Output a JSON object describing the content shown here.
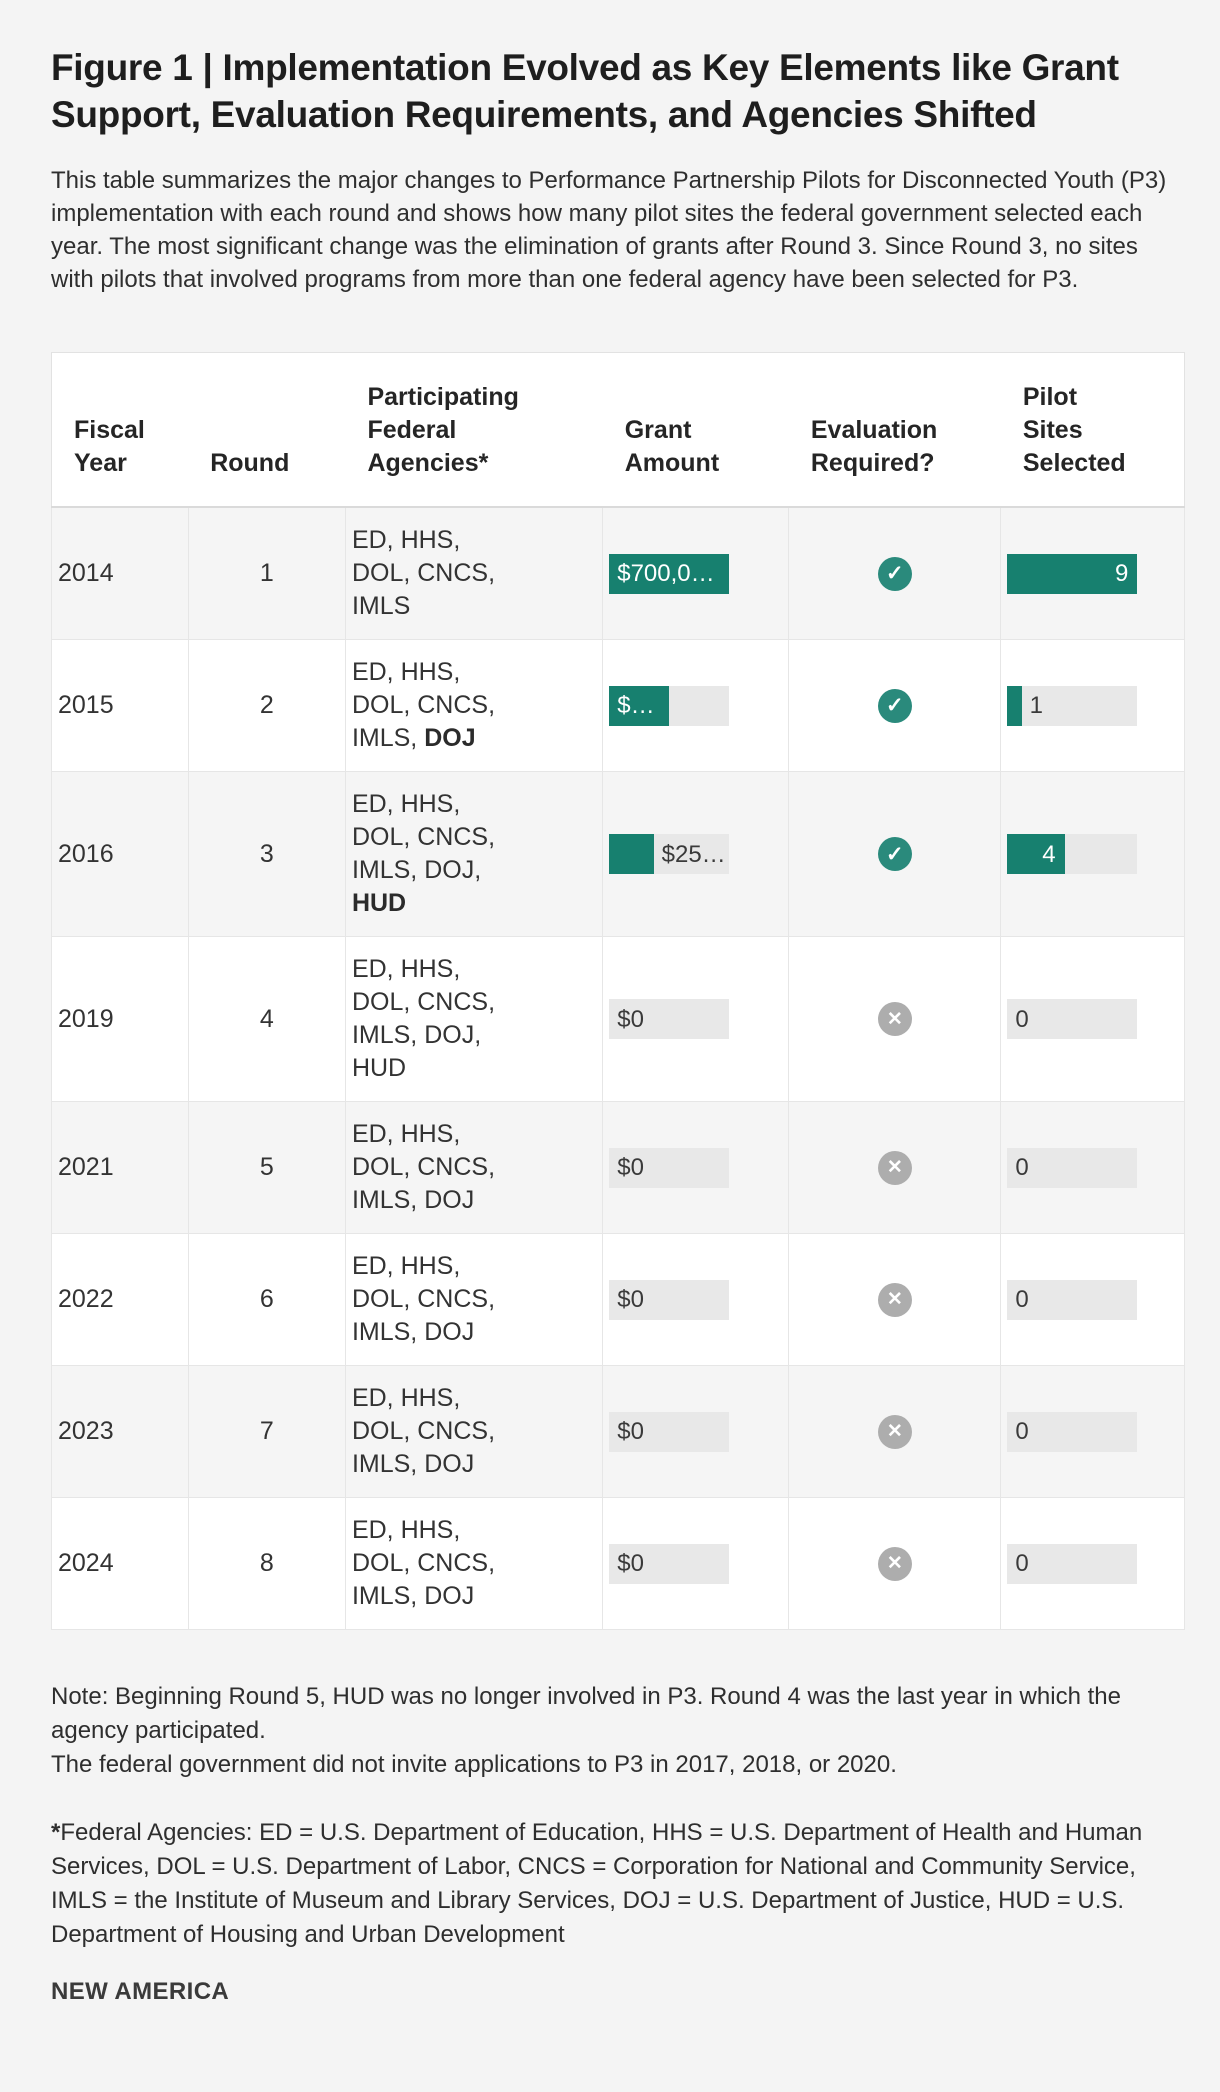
{
  "figure": {
    "title": "Figure 1 | Implementation Evolved as Key Elements like Grant Support, Evaluation Requirements, and Agencies Shifted",
    "description": "This table summarizes the major changes to Performance Partnership Pilots for Disconnected Youth (P3) implementation with each round and shows how many pilot sites the federal government selected each year. The most significant change was the elimination of grants after Round 3. Since Round 3, no sites with pilots that involved programs from more than one federal agency have been selected for P3.",
    "notes": [
      "Note: Beginning Round 5, HUD was no longer involved in P3. Round 4 was the last year in which the agency participated.",
      "The federal government did not invite applications to P3 in 2017, 2018, or 2020."
    ],
    "footnote_marker": "*",
    "footnote_text": "Federal Agencies: ED = U.S. Department of Education, HHS = U.S. Department of Health and Human Services, DOL = U.S. Department of Labor, CNCS = Corporation for National and Community Service, IMLS = the Institute of Museum and Library Services, DOJ = U.S. Department of Justice, HUD = U.S. Department of Housing and Urban Development",
    "brand": "NEW AMERICA"
  },
  "icons": {
    "check": "✓",
    "cross": "✕"
  },
  "colors": {
    "teal_bar": "#17806F",
    "check_circle": "#2A8A7C",
    "cross_circle": "#ADADAD",
    "bar_track": "#E8E8E8",
    "row_stripe": "#F5F5F5",
    "page_background": "#F4F4F4"
  },
  "table": {
    "columns": [
      "Fiscal Year",
      "Round",
      "Participating Federal Agencies*",
      "Grant Amount",
      "Evaluation Required?",
      "Pilot Sites Selected"
    ],
    "rows": [
      {
        "fiscal_year": "2014",
        "round": "1",
        "agencies": "ED, HHS, DOL, CNCS, IMLS",
        "agencies_bold": "",
        "grant_label": "$700,0…",
        "grant_fill_pct": 100,
        "evaluation": "yes",
        "sites_label": "9",
        "sites_fill_pct": 100
      },
      {
        "fiscal_year": "2015",
        "round": "2",
        "agencies": "ED, HHS, DOL, CNCS, IMLS, ",
        "agencies_bold": "DOJ",
        "grant_label": "$…",
        "grant_fill_pct": 50,
        "evaluation": "yes",
        "sites_label": "1",
        "sites_fill_pct": 11
      },
      {
        "fiscal_year": "2016",
        "round": "3",
        "agencies": "ED, HHS, DOL, CNCS, IMLS, DOJ, ",
        "agencies_bold": "HUD",
        "grant_label": "$25…",
        "grant_fill_pct": 37,
        "evaluation": "yes",
        "sites_label": "4",
        "sites_fill_pct": 44
      },
      {
        "fiscal_year": "2019",
        "round": "4",
        "agencies": "ED, HHS, DOL, CNCS, IMLS, DOJ, HUD",
        "agencies_bold": "",
        "grant_label": "$0",
        "grant_fill_pct": 0,
        "evaluation": "no",
        "sites_label": "0",
        "sites_fill_pct": 0
      },
      {
        "fiscal_year": "2021",
        "round": "5",
        "agencies": "ED, HHS, DOL, CNCS, IMLS, DOJ",
        "agencies_bold": "",
        "grant_label": "$0",
        "grant_fill_pct": 0,
        "evaluation": "no",
        "sites_label": "0",
        "sites_fill_pct": 0
      },
      {
        "fiscal_year": "2022",
        "round": "6",
        "agencies": "ED, HHS, DOL, CNCS, IMLS, DOJ",
        "agencies_bold": "",
        "grant_label": "$0",
        "grant_fill_pct": 0,
        "evaluation": "no",
        "sites_label": "0",
        "sites_fill_pct": 0
      },
      {
        "fiscal_year": "2023",
        "round": "7",
        "agencies": "ED, HHS, DOL, CNCS, IMLS, DOJ",
        "agencies_bold": "",
        "grant_label": "$0",
        "grant_fill_pct": 0,
        "evaluation": "no",
        "sites_label": "0",
        "sites_fill_pct": 0
      },
      {
        "fiscal_year": "2024",
        "round": "8",
        "agencies": "ED, HHS, DOL, CNCS, IMLS, DOJ",
        "agencies_bold": "",
        "grant_label": "$0",
        "grant_fill_pct": 0,
        "evaluation": "no",
        "sites_label": "0",
        "sites_fill_pct": 0
      }
    ]
  },
  "chart_data": {
    "type": "table",
    "title": "Figure 1 | Implementation Evolved as Key Elements like Grant Support, Evaluation Requirements, and Agencies Shifted",
    "columns": [
      "Fiscal Year",
      "Round",
      "Participating Federal Agencies*",
      "Grant Amount",
      "Evaluation Required?",
      "Pilot Sites Selected"
    ],
    "rows": [
      {
        "fiscal_year": 2014,
        "round": 1,
        "agencies": "ED, HHS, DOL, CNCS, IMLS",
        "grant_label_shown": "$700,0…",
        "grant_bar_fraction": 1.0,
        "evaluation_required": true,
        "pilot_sites_selected": 9,
        "pilot_bar_fraction": 1.0
      },
      {
        "fiscal_year": 2015,
        "round": 2,
        "agencies": "ED, HHS, DOL, CNCS, IMLS, DOJ",
        "grant_label_shown": "$…",
        "grant_bar_fraction": 0.5,
        "evaluation_required": true,
        "pilot_sites_selected": 1,
        "pilot_bar_fraction": 0.11
      },
      {
        "fiscal_year": 2016,
        "round": 3,
        "agencies": "ED, HHS, DOL, CNCS, IMLS, DOJ, HUD",
        "grant_label_shown": "$25…",
        "grant_bar_fraction": 0.37,
        "evaluation_required": true,
        "pilot_sites_selected": 4,
        "pilot_bar_fraction": 0.44
      },
      {
        "fiscal_year": 2019,
        "round": 4,
        "agencies": "ED, HHS, DOL, CNCS, IMLS, DOJ, HUD",
        "grant_label_shown": "$0",
        "grant_bar_fraction": 0,
        "evaluation_required": false,
        "pilot_sites_selected": 0,
        "pilot_bar_fraction": 0
      },
      {
        "fiscal_year": 2021,
        "round": 5,
        "agencies": "ED, HHS, DOL, CNCS, IMLS, DOJ",
        "grant_label_shown": "$0",
        "grant_bar_fraction": 0,
        "evaluation_required": false,
        "pilot_sites_selected": 0,
        "pilot_bar_fraction": 0
      },
      {
        "fiscal_year": 2022,
        "round": 6,
        "agencies": "ED, HHS, DOL, CNCS, IMLS, DOJ",
        "grant_label_shown": "$0",
        "grant_bar_fraction": 0,
        "evaluation_required": false,
        "pilot_sites_selected": 0,
        "pilot_bar_fraction": 0
      },
      {
        "fiscal_year": 2023,
        "round": 7,
        "agencies": "ED, HHS, DOL, CNCS, IMLS, DOJ",
        "grant_label_shown": "$0",
        "grant_bar_fraction": 0,
        "evaluation_required": false,
        "pilot_sites_selected": 0,
        "pilot_bar_fraction": 0
      },
      {
        "fiscal_year": 2024,
        "round": 8,
        "agencies": "ED, HHS, DOL, CNCS, IMLS, DOJ",
        "grant_label_shown": "$0",
        "grant_bar_fraction": 0,
        "evaluation_required": false,
        "pilot_sites_selected": 0,
        "pilot_bar_fraction": 0
      }
    ],
    "bar_scale_note": "In-cell bars: grant bar full width = row with $700,0… ; pilot sites bar full width = 9 sites"
  }
}
